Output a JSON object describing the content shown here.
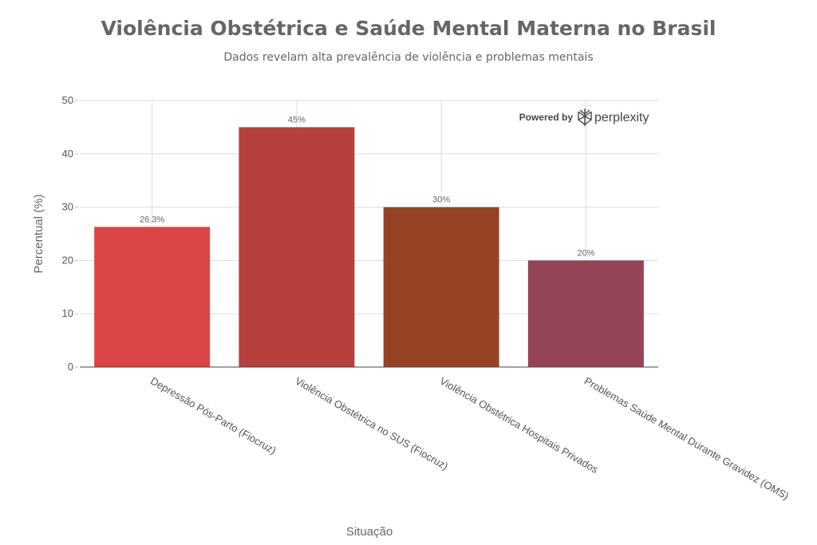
{
  "chart_data": {
    "type": "bar",
    "title": "Violência Obstétrica e Saúde Mental Materna no Brasil",
    "subtitle": "Dados revelam alta prevalência de violência e problemas mentais",
    "xlabel": "Situação",
    "ylabel": "Percentual (%)",
    "ylim": [
      0,
      50
    ],
    "yticks": [
      0,
      10,
      20,
      30,
      40,
      50
    ],
    "grid": true,
    "categories": [
      "Depressão Pós-Parto (Fiocruz)",
      "Violência Obstétrica no SUS (Fiocruz)",
      "Violência Obstétrica Hospitais Privados",
      "Problemas Saúde Mental Durante Gravidez (OMS)"
    ],
    "values": [
      26.3,
      45,
      30,
      20
    ],
    "data_labels": [
      "26.3%",
      "45%",
      "30%",
      "20%"
    ],
    "colors": [
      "#DB4545",
      "#B4413C",
      "#944454",
      "#964325"
    ],
    "bar_colors": [
      "#DB4545",
      "#B4413C",
      "#964325",
      "#944454"
    ]
  },
  "watermark": {
    "powered_by": "Powered by",
    "brand": "perplexity",
    "icon": "perplexity-logo-icon"
  }
}
